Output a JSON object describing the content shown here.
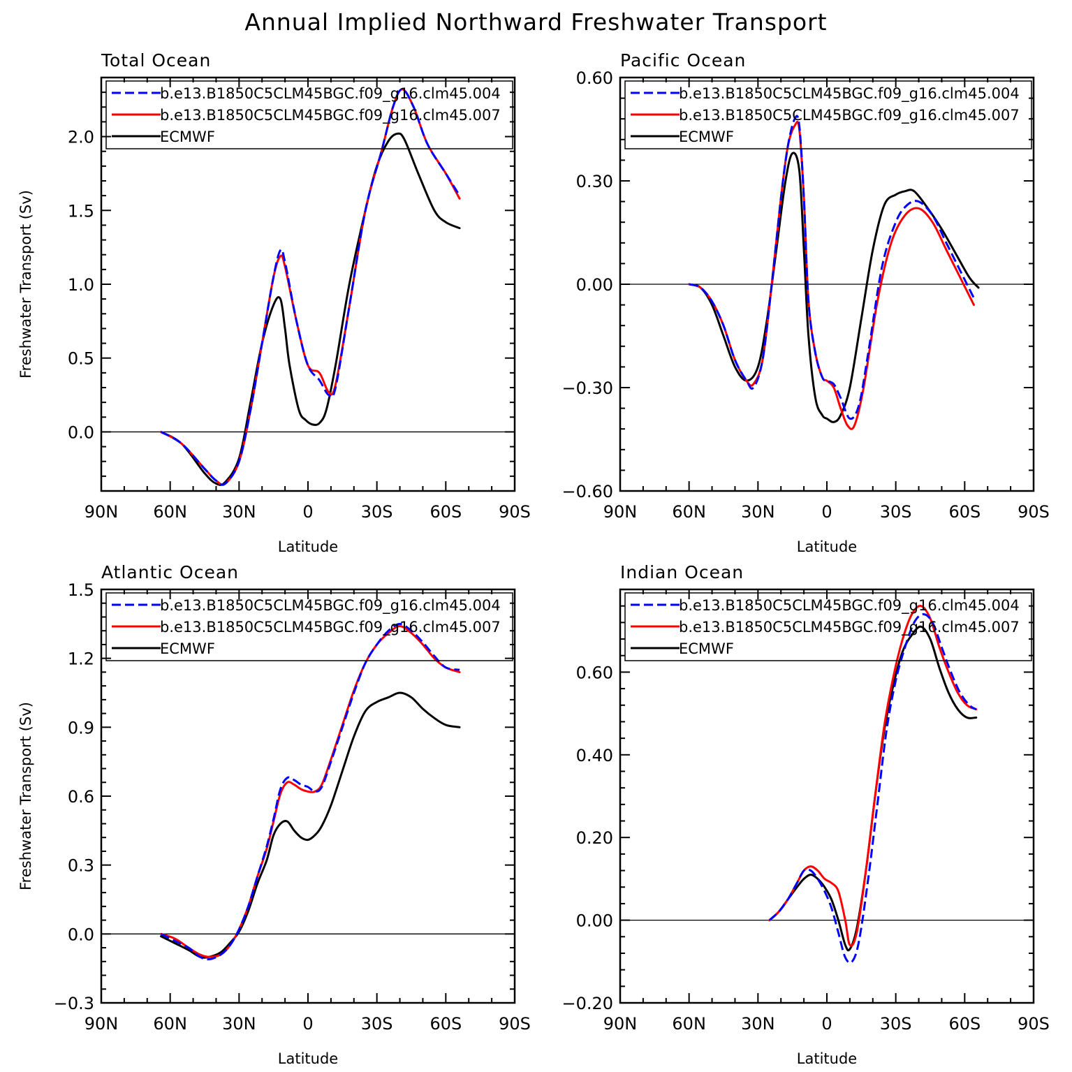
{
  "title": "Annual Implied Northward Freshwater Transport",
  "colors": {
    "series_004": "#0000ff",
    "series_007": "#ff0000",
    "ecmwf": "#000000",
    "axis": "#000000",
    "background": "#ffffff"
  },
  "chart_data": [
    {
      "type": "line",
      "title": "Total Ocean",
      "xlabel": "Latitude",
      "ylabel": "Freshwater Transport (Sv)",
      "xticks": [
        90,
        60,
        30,
        0,
        -30,
        -60,
        -90
      ],
      "xtick_labels": [
        "90N",
        "60N",
        "30N",
        "0",
        "30S",
        "60S",
        "90S"
      ],
      "xlim": [
        90,
        -90
      ],
      "ylim": [
        -0.4,
        2.4
      ],
      "yticks": [
        0.0,
        0.5,
        1.0,
        1.5,
        2.0
      ],
      "ytick_labels": [
        "0.0",
        "0.5",
        "1.0",
        "1.5",
        "2.0"
      ],
      "legend_position": "top",
      "grid": false,
      "series": [
        {
          "name": "b.e13.B1850C5CLM45BGC.f09_g16.clm45.004",
          "style": "dashed",
          "x": [
            64,
            55,
            45,
            40,
            36,
            30,
            25,
            20,
            15,
            12,
            10,
            5,
            0,
            -5,
            -9,
            -12,
            -18,
            -25,
            -32,
            -37,
            -41,
            -46,
            -52,
            -60,
            -66
          ],
          "y": [
            0,
            -0.08,
            -0.25,
            -0.33,
            -0.35,
            -0.2,
            0.15,
            0.6,
            1.05,
            1.23,
            1.15,
            0.75,
            0.45,
            0.35,
            0.25,
            0.3,
            0.85,
            1.5,
            1.9,
            2.2,
            2.32,
            2.2,
            1.95,
            1.75,
            1.6
          ]
        },
        {
          "name": "b.e13.B1850C5CLM45BGC.f09_g16.clm45.007",
          "style": "solid",
          "x": [
            64,
            55,
            45,
            40,
            36,
            30,
            25,
            20,
            15,
            12,
            10,
            5,
            0,
            -5,
            -9,
            -12,
            -18,
            -25,
            -32,
            -37,
            -41,
            -46,
            -52,
            -60,
            -66
          ],
          "y": [
            0,
            -0.08,
            -0.25,
            -0.33,
            -0.35,
            -0.2,
            0.15,
            0.6,
            1.05,
            1.19,
            1.12,
            0.75,
            0.45,
            0.4,
            0.27,
            0.32,
            0.85,
            1.5,
            1.9,
            2.2,
            2.32,
            2.2,
            1.95,
            1.75,
            1.58
          ]
        },
        {
          "name": "ECMWF",
          "style": "solid",
          "x": [
            64,
            55,
            45,
            40,
            36,
            30,
            25,
            20,
            15,
            12,
            10,
            8,
            4,
            1,
            -2,
            -5,
            -8,
            -12,
            -18,
            -25,
            -30,
            -35,
            -39,
            -42,
            -48,
            -55,
            -60,
            -66
          ],
          "y": [
            0,
            -0.08,
            -0.28,
            -0.35,
            -0.34,
            -0.18,
            0.2,
            0.6,
            0.86,
            0.9,
            0.7,
            0.45,
            0.15,
            0.08,
            0.05,
            0.06,
            0.15,
            0.45,
            1.0,
            1.5,
            1.8,
            1.97,
            2.02,
            1.98,
            1.75,
            1.5,
            1.42,
            1.38
          ]
        }
      ]
    },
    {
      "type": "line",
      "title": "Pacific Ocean",
      "xlabel": "Latitude",
      "ylabel": "",
      "xticks": [
        90,
        60,
        30,
        0,
        -30,
        -60,
        -90
      ],
      "xtick_labels": [
        "90N",
        "60N",
        "30N",
        "0",
        "30S",
        "60S",
        "90S"
      ],
      "xlim": [
        90,
        -90
      ],
      "ylim": [
        -0.6,
        0.6
      ],
      "yticks": [
        -0.6,
        -0.3,
        0.0,
        0.3,
        0.6
      ],
      "ytick_labels": [
        "−0.60",
        "−0.30",
        "0.00",
        "0.30",
        "0.60"
      ],
      "legend_position": "top",
      "grid": false,
      "series": [
        {
          "name": "b.e13.B1850C5CLM45BGC.f09_g16.clm45.004",
          "style": "dashed",
          "x": [
            60,
            55,
            50,
            45,
            40,
            35,
            32,
            28,
            24,
            20,
            17,
            14,
            12,
            10,
            8,
            5,
            2,
            0,
            -3,
            -6,
            -10,
            -14,
            -18,
            -24,
            -30,
            -35,
            -40,
            -46,
            -52,
            -58,
            -64
          ],
          "y": [
            0,
            -0.01,
            -0.05,
            -0.12,
            -0.22,
            -0.28,
            -0.3,
            -0.22,
            0.0,
            0.25,
            0.4,
            0.48,
            0.46,
            0.25,
            -0.05,
            -0.2,
            -0.27,
            -0.28,
            -0.29,
            -0.33,
            -0.39,
            -0.35,
            -0.2,
            0.05,
            0.18,
            0.23,
            0.24,
            0.2,
            0.12,
            0.04,
            -0.04
          ]
        },
        {
          "name": "b.e13.B1850C5CLM45BGC.f09_g16.clm45.007",
          "style": "solid",
          "x": [
            60,
            55,
            50,
            45,
            40,
            35,
            32,
            28,
            24,
            20,
            17,
            14,
            12,
            10,
            8,
            5,
            2,
            0,
            -3,
            -6,
            -9,
            -12,
            -16,
            -22,
            -28,
            -34,
            -40,
            -46,
            -52,
            -58,
            -64
          ],
          "y": [
            0,
            -0.01,
            -0.05,
            -0.12,
            -0.22,
            -0.28,
            -0.29,
            -0.22,
            0.0,
            0.25,
            0.4,
            0.46,
            0.45,
            0.25,
            -0.05,
            -0.2,
            -0.27,
            -0.28,
            -0.3,
            -0.36,
            -0.41,
            -0.41,
            -0.3,
            -0.05,
            0.12,
            0.2,
            0.22,
            0.18,
            0.1,
            0.02,
            -0.06
          ]
        },
        {
          "name": "ECMWF",
          "style": "solid",
          "x": [
            60,
            55,
            50,
            45,
            40,
            35,
            30,
            26,
            22,
            18,
            15,
            12,
            10,
            8,
            5,
            2,
            0,
            -3,
            -6,
            -10,
            -15,
            -20,
            -25,
            -30,
            -34,
            -38,
            -44,
            -50,
            -56,
            -62,
            -66
          ],
          "y": [
            0,
            -0.01,
            -0.06,
            -0.15,
            -0.24,
            -0.28,
            -0.24,
            -0.1,
            0.1,
            0.3,
            0.38,
            0.33,
            0.1,
            -0.15,
            -0.33,
            -0.38,
            -0.39,
            -0.4,
            -0.38,
            -0.3,
            -0.1,
            0.1,
            0.23,
            0.26,
            0.27,
            0.27,
            0.22,
            0.16,
            0.09,
            0.02,
            -0.01
          ]
        }
      ]
    },
    {
      "type": "line",
      "title": "Atlantic Ocean",
      "xlabel": "Latitude",
      "ylabel": "Freshwater Transport (Sv)",
      "xticks": [
        90,
        60,
        30,
        0,
        -30,
        -60,
        -90
      ],
      "xtick_labels": [
        "90N",
        "60N",
        "30N",
        "0",
        "30S",
        "60S",
        "90S"
      ],
      "xlim": [
        90,
        -90
      ],
      "ylim": [
        -0.3,
        1.5
      ],
      "yticks": [
        -0.3,
        0.0,
        0.3,
        0.6,
        0.9,
        1.2,
        1.5
      ],
      "ytick_labels": [
        "−0.3",
        "0.0",
        "0.3",
        "0.6",
        "0.9",
        "1.2",
        "1.5"
      ],
      "legend_position": "top",
      "grid": false,
      "series": [
        {
          "name": "b.e13.B1850C5CLM45BGC.f09_g16.clm45.004",
          "style": "dashed",
          "x": [
            64,
            58,
            52,
            47,
            43,
            38,
            34,
            30,
            26,
            22,
            18,
            15,
            12,
            9,
            6,
            3,
            0,
            -3,
            -6,
            -10,
            -15,
            -20,
            -25,
            -30,
            -35,
            -40,
            -45,
            -50,
            -55,
            -60,
            -66
          ],
          "y": [
            0,
            -0.03,
            -0.06,
            -0.1,
            -0.11,
            -0.09,
            -0.05,
            0.02,
            0.12,
            0.25,
            0.38,
            0.5,
            0.63,
            0.68,
            0.67,
            0.65,
            0.64,
            0.62,
            0.64,
            0.75,
            0.9,
            1.05,
            1.18,
            1.26,
            1.32,
            1.35,
            1.32,
            1.27,
            1.21,
            1.16,
            1.15
          ]
        },
        {
          "name": "b.e13.B1850C5CLM45BGC.f09_g16.clm45.007",
          "style": "solid",
          "x": [
            64,
            58,
            52,
            47,
            43,
            38,
            34,
            30,
            26,
            22,
            18,
            15,
            12,
            9,
            6,
            3,
            0,
            -3,
            -6,
            -10,
            -15,
            -20,
            -25,
            -30,
            -35,
            -40,
            -45,
            -50,
            -55,
            -60,
            -66
          ],
          "y": [
            0,
            -0.02,
            -0.06,
            -0.09,
            -0.1,
            -0.09,
            -0.05,
            0.02,
            0.12,
            0.25,
            0.37,
            0.49,
            0.61,
            0.66,
            0.65,
            0.63,
            0.62,
            0.62,
            0.65,
            0.76,
            0.91,
            1.06,
            1.18,
            1.26,
            1.31,
            1.34,
            1.31,
            1.26,
            1.2,
            1.16,
            1.14
          ]
        },
        {
          "name": "ECMWF",
          "style": "solid",
          "x": [
            64,
            58,
            52,
            47,
            43,
            38,
            34,
            30,
            26,
            22,
            18,
            15,
            12,
            9,
            6,
            3,
            0,
            -3,
            -6,
            -10,
            -15,
            -20,
            -25,
            -30,
            -35,
            -40,
            -45,
            -50,
            -55,
            -60,
            -66
          ],
          "y": [
            -0.01,
            -0.04,
            -0.07,
            -0.1,
            -0.1,
            -0.08,
            -0.04,
            0.01,
            0.1,
            0.22,
            0.32,
            0.43,
            0.48,
            0.49,
            0.45,
            0.42,
            0.41,
            0.43,
            0.47,
            0.56,
            0.71,
            0.86,
            0.97,
            1.01,
            1.03,
            1.05,
            1.03,
            0.98,
            0.94,
            0.91,
            0.9
          ]
        }
      ]
    },
    {
      "type": "line",
      "title": "Indian Ocean",
      "xlabel": "Latitude",
      "ylabel": "",
      "xticks": [
        90,
        60,
        30,
        0,
        -30,
        -60,
        -90
      ],
      "xtick_labels": [
        "90N",
        "60N",
        "30N",
        "0",
        "30S",
        "60S",
        "90S"
      ],
      "xlim": [
        90,
        -90
      ],
      "ylim": [
        -0.2,
        0.8
      ],
      "yticks": [
        -0.2,
        0.0,
        0.2,
        0.4,
        0.6
      ],
      "ytick_labels": [
        "−0.20",
        "0.00",
        "0.20",
        "0.40",
        "0.60"
      ],
      "legend_position": "top",
      "grid": false,
      "series": [
        {
          "name": "b.e13.B1850C5CLM45BGC.f09_g16.clm45.004",
          "style": "dashed",
          "x": [
            25,
            21,
            17,
            13,
            10,
            7,
            4,
            1,
            -2,
            -5,
            -8,
            -11,
            -14,
            -18,
            -22,
            -26,
            -30,
            -34,
            -38,
            -42,
            -46,
            -50,
            -54,
            -58,
            -62,
            -65
          ],
          "y": [
            0,
            0.02,
            0.05,
            0.09,
            0.12,
            0.12,
            0.1,
            0.07,
            0.03,
            -0.03,
            -0.09,
            -0.1,
            -0.05,
            0.1,
            0.28,
            0.46,
            0.58,
            0.66,
            0.72,
            0.74,
            0.72,
            0.66,
            0.6,
            0.55,
            0.52,
            0.51
          ]
        },
        {
          "name": "b.e13.B1850C5CLM45BGC.f09_g16.clm45.007",
          "style": "solid",
          "x": [
            25,
            21,
            17,
            13,
            10,
            7,
            4,
            1,
            -2,
            -5,
            -8,
            -10,
            -13,
            -17,
            -21,
            -25,
            -29,
            -33,
            -37,
            -41,
            -45,
            -49,
            -53,
            -57,
            -61,
            -65
          ],
          "y": [
            0,
            0.02,
            0.05,
            0.09,
            0.12,
            0.13,
            0.12,
            0.1,
            0.09,
            0.07,
            0.0,
            -0.06,
            -0.03,
            0.12,
            0.3,
            0.47,
            0.59,
            0.68,
            0.74,
            0.76,
            0.73,
            0.66,
            0.6,
            0.55,
            0.52,
            0.51
          ]
        },
        {
          "name": "ECMWF",
          "style": "solid",
          "x": [
            25,
            21,
            17,
            13,
            10,
            7,
            4,
            1,
            -2,
            -5,
            -8,
            -10,
            -13,
            -17,
            -21,
            -25,
            -29,
            -33,
            -37,
            -41,
            -45,
            -49,
            -53,
            -57,
            -61,
            -65
          ],
          "y": [
            0,
            0.02,
            0.05,
            0.08,
            0.1,
            0.11,
            0.1,
            0.08,
            0.05,
            0.0,
            -0.06,
            -0.07,
            -0.02,
            0.12,
            0.3,
            0.46,
            0.57,
            0.65,
            0.69,
            0.71,
            0.68,
            0.61,
            0.55,
            0.51,
            0.49,
            0.49
          ]
        }
      ]
    }
  ]
}
